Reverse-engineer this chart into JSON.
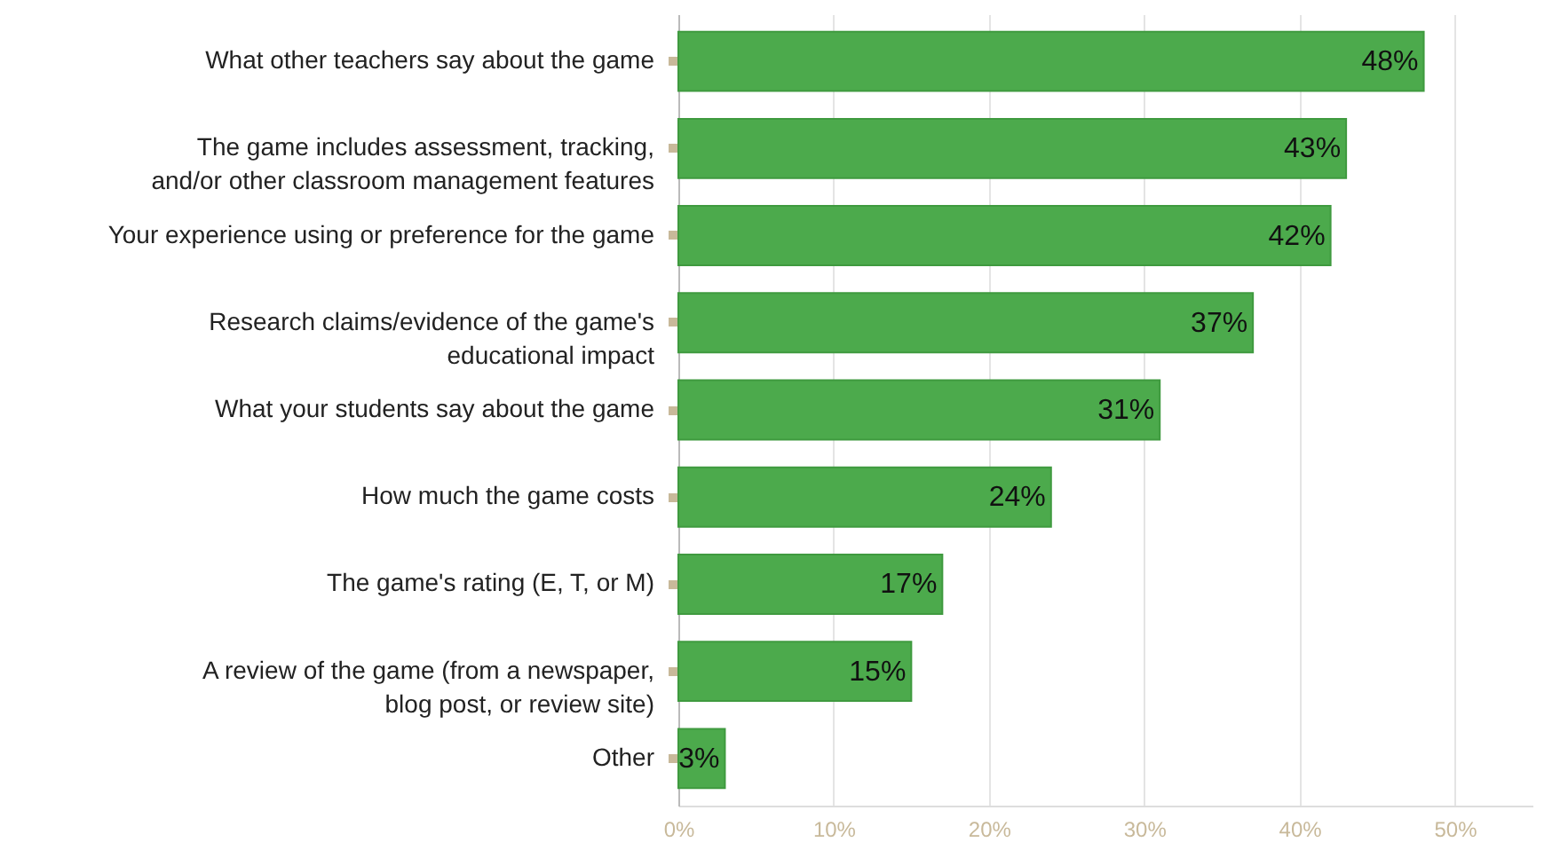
{
  "chart_data": {
    "type": "bar",
    "orientation": "horizontal",
    "categories": [
      "What other teachers say about the game",
      "The game includes assessment, tracking,\nand/or other classroom management features",
      "Your experience using or preference for the game",
      "Research claims/evidence of the game's\neducational impact",
      "What your students say about the game",
      "How much the game costs",
      "The game's rating (E, T, or M)",
      "A review of the game (from a newspaper,\nblog post, or review site)",
      "Other"
    ],
    "values": [
      48,
      43,
      42,
      37,
      31,
      24,
      17,
      15,
      3
    ],
    "value_labels": [
      "48%",
      "43%",
      "42%",
      "37%",
      "31%",
      "24%",
      "17%",
      "15%",
      "3%"
    ],
    "color": "#4caa4c",
    "xlim": [
      0,
      55
    ],
    "xticks": [
      {
        "value": 0,
        "label": "0%"
      },
      {
        "value": 10,
        "label": "10%"
      },
      {
        "value": 20,
        "label": "20%"
      },
      {
        "value": 30,
        "label": "30%"
      },
      {
        "value": 40,
        "label": "40%"
      },
      {
        "value": 50,
        "label": "50%"
      }
    ],
    "grid": "x"
  }
}
